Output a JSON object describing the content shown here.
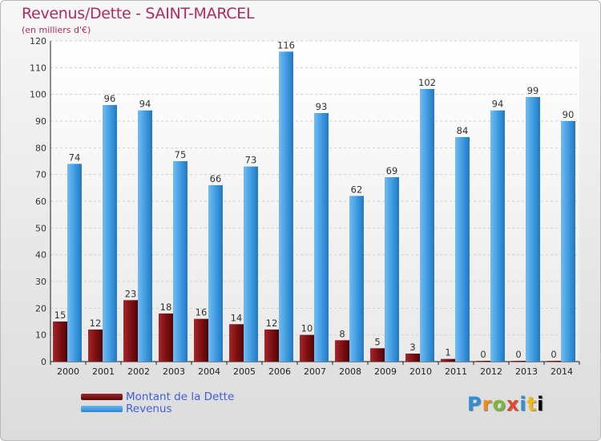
{
  "chart_data": {
    "type": "bar",
    "title": "Revenus/Dette - SAINT-MARCEL",
    "subtitle": "(en milliers d'€)",
    "categories": [
      "2000",
      "2001",
      "2002",
      "2003",
      "2004",
      "2005",
      "2006",
      "2007",
      "2008",
      "2009",
      "2010",
      "2011",
      "2012",
      "2013",
      "2014"
    ],
    "series": [
      {
        "name": "Montant de la Dette",
        "color": "#7a0f12",
        "values": [
          15,
          12,
          23,
          18,
          16,
          14,
          12,
          10,
          8,
          5,
          3,
          1,
          0,
          0,
          0
        ]
      },
      {
        "name": "Revenus",
        "color": "#3d98df",
        "values": [
          74,
          96,
          94,
          75,
          66,
          73,
          116,
          93,
          62,
          69,
          102,
          84,
          94,
          99,
          90
        ]
      }
    ],
    "yticks": [
      0,
      10,
      20,
      30,
      40,
      50,
      60,
      70,
      80,
      90,
      100,
      110,
      120
    ],
    "ylim": [
      0,
      120
    ],
    "grid": true,
    "legend_position": "bottom-left"
  },
  "logo": {
    "letters": [
      "P",
      "r",
      "o",
      "x",
      "i",
      "t",
      "i"
    ]
  }
}
